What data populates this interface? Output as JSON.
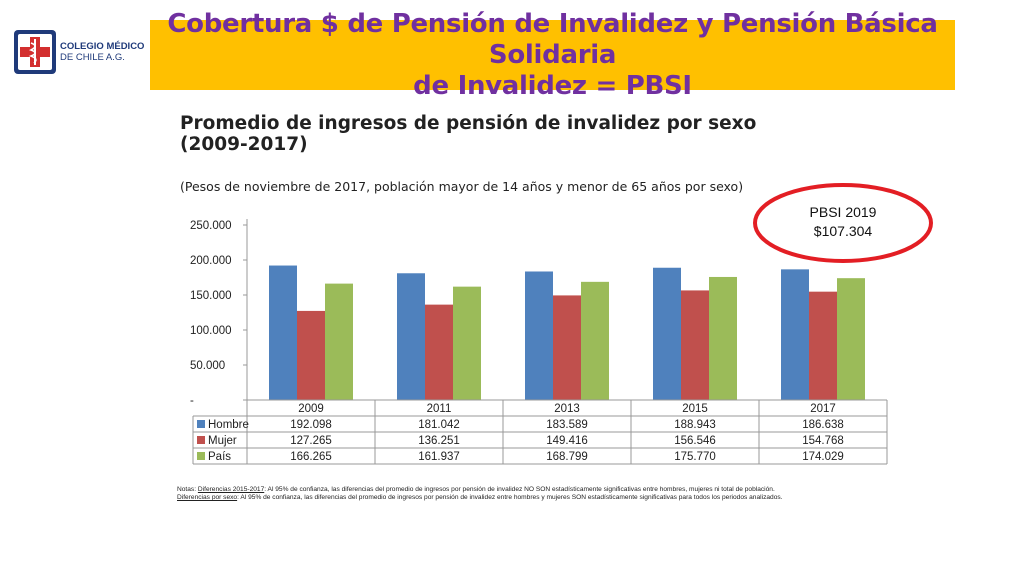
{
  "logo": {
    "line1": "COLEGIO MÉDICO",
    "line2": "DE CHILE A.G.",
    "icon": "medical-cross-caduceus-icon"
  },
  "slide_title": "Cobertura $ de Pensión de Invalidez y Pensión Básica Solidaria\nde Invalidez = PBSI",
  "colors": {
    "title_bar": "#ffc000",
    "title_text": "#7030a0",
    "oval": "#e31e24"
  },
  "annotation": {
    "line1": "PBSI 2019",
    "line2": "$107.304"
  },
  "notes": {
    "prefix": "Notas: ",
    "n1_label": "Diferencias 2015-2017",
    "n1_text": ": Al 95% de confianza, las diferencias del promedio de ingresos por pensión de invalidez NO SON estadísticamente significativas entre hombres, mujeres ni total de población.",
    "n2_label": "Diferencias por sexo",
    "n2_text": ": Al 95% de confianza, las diferencias del promedio de ingresos por pensión de invalidez entre hombres y mujeres SON estadísticamente significativas para todos los periodos analizados."
  },
  "chart_data": {
    "type": "bar",
    "title": "Promedio de ingresos de pensión de invalidez por sexo\n(2009-2017)",
    "subtitle": "(Pesos de noviembre de 2017, población mayor de 14 años y menor de 65 años por sexo)",
    "categories": [
      "2009",
      "2011",
      "2013",
      "2015",
      "2017"
    ],
    "ylim": [
      0,
      250000
    ],
    "yticks": [
      0,
      50000,
      100000,
      150000,
      200000,
      250000
    ],
    "ytick_labels": [
      "-",
      "50.000",
      "100.000",
      "150.000",
      "200.000",
      "250.000"
    ],
    "grid": false,
    "legend": "data-table",
    "series": [
      {
        "name": "Hombre",
        "color": "#4f81bd",
        "values": [
          192098,
          181042,
          183589,
          188943,
          186638
        ],
        "labels": [
          "192.098",
          "181.042",
          "183.589",
          "188.943",
          "186.638"
        ]
      },
      {
        "name": "Mujer",
        "color": "#c0504d",
        "values": [
          127265,
          136251,
          149416,
          156546,
          154768
        ],
        "labels": [
          "127.265",
          "136.251",
          "149.416",
          "156.546",
          "154.768"
        ]
      },
      {
        "name": "País",
        "color": "#9bbb59",
        "values": [
          166265,
          161937,
          168799,
          175770,
          174029
        ],
        "labels": [
          "166.265",
          "161.937",
          "168.799",
          "175.770",
          "174.029"
        ]
      }
    ]
  }
}
